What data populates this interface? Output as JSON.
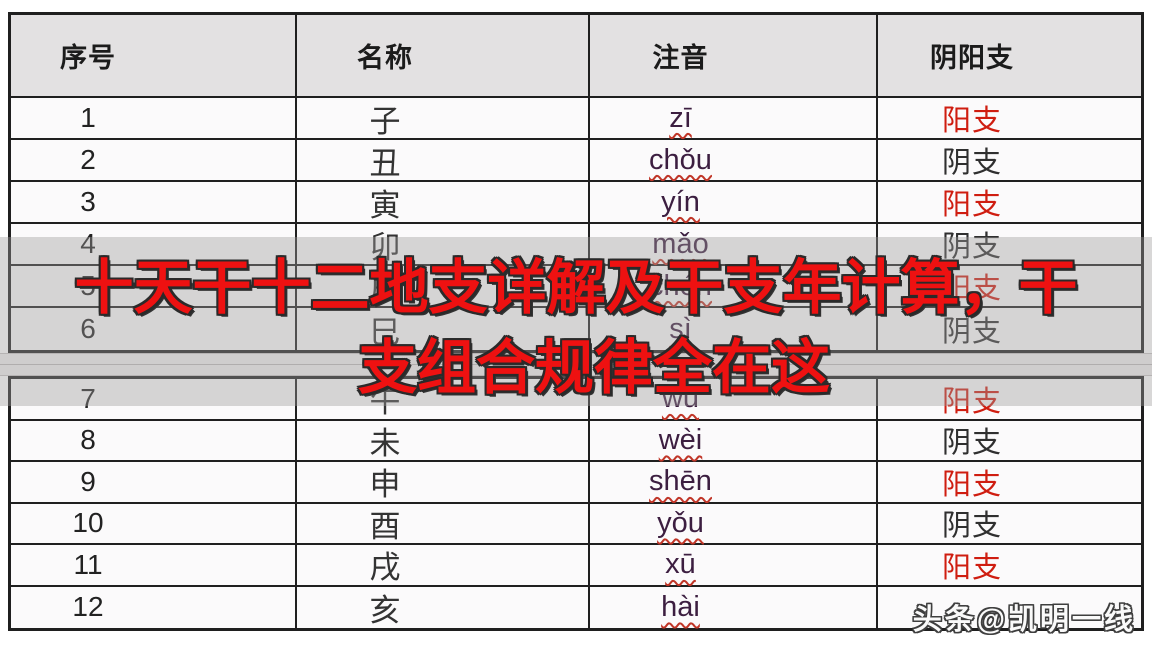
{
  "title": {
    "line1": "十天干十二地支详解及干支年计算，干",
    "line2": "支组合规律全在这",
    "color": "#ee1111"
  },
  "table": {
    "headers": [
      "序号",
      "名称",
      "注音",
      "阴阳支"
    ],
    "rows": [
      {
        "no": "1",
        "name": "子",
        "pinyin": "zī",
        "type": "阳支"
      },
      {
        "no": "2",
        "name": "丑",
        "pinyin": "chǒu",
        "type": "阴支"
      },
      {
        "no": "3",
        "name": "寅",
        "pinyin": "yín",
        "type": "阳支"
      },
      {
        "no": "4",
        "name": "卯",
        "pinyin": "mǎo",
        "type": "阴支"
      },
      {
        "no": "5",
        "name": "辰",
        "pinyin": "chén",
        "type": "阳支"
      },
      {
        "no": "6",
        "name": "巳",
        "pinyin": "sì",
        "type": "阴支"
      },
      {
        "no": "7",
        "name": "午",
        "pinyin": "wǔ",
        "type": "阳支"
      },
      {
        "no": "8",
        "name": "未",
        "pinyin": "wèi",
        "type": "阴支"
      },
      {
        "no": "9",
        "name": "申",
        "pinyin": "shēn",
        "type": "阳支"
      },
      {
        "no": "10",
        "name": "酉",
        "pinyin": "yǒu",
        "type": "阴支"
      },
      {
        "no": "11",
        "name": "戌",
        "pinyin": "xū",
        "type": "阳支"
      },
      {
        "no": "12",
        "name": "亥",
        "pinyin": "hài",
        "type": ""
      }
    ]
  },
  "watermark": {
    "text": "头条@凯明一线"
  },
  "colors": {
    "title_red": "#ee1111",
    "yang_red": "#cf1d10",
    "yin_dark": "#2f2f2f",
    "pinyin_purple": "#3c1e40",
    "squiggle_red": "#c03527",
    "header_bg": "#e3e1e2",
    "row_bg": "#fbfafb",
    "border": "#1f1f1f",
    "backdrop_gray": "rgba(158,155,156,0.40)"
  }
}
